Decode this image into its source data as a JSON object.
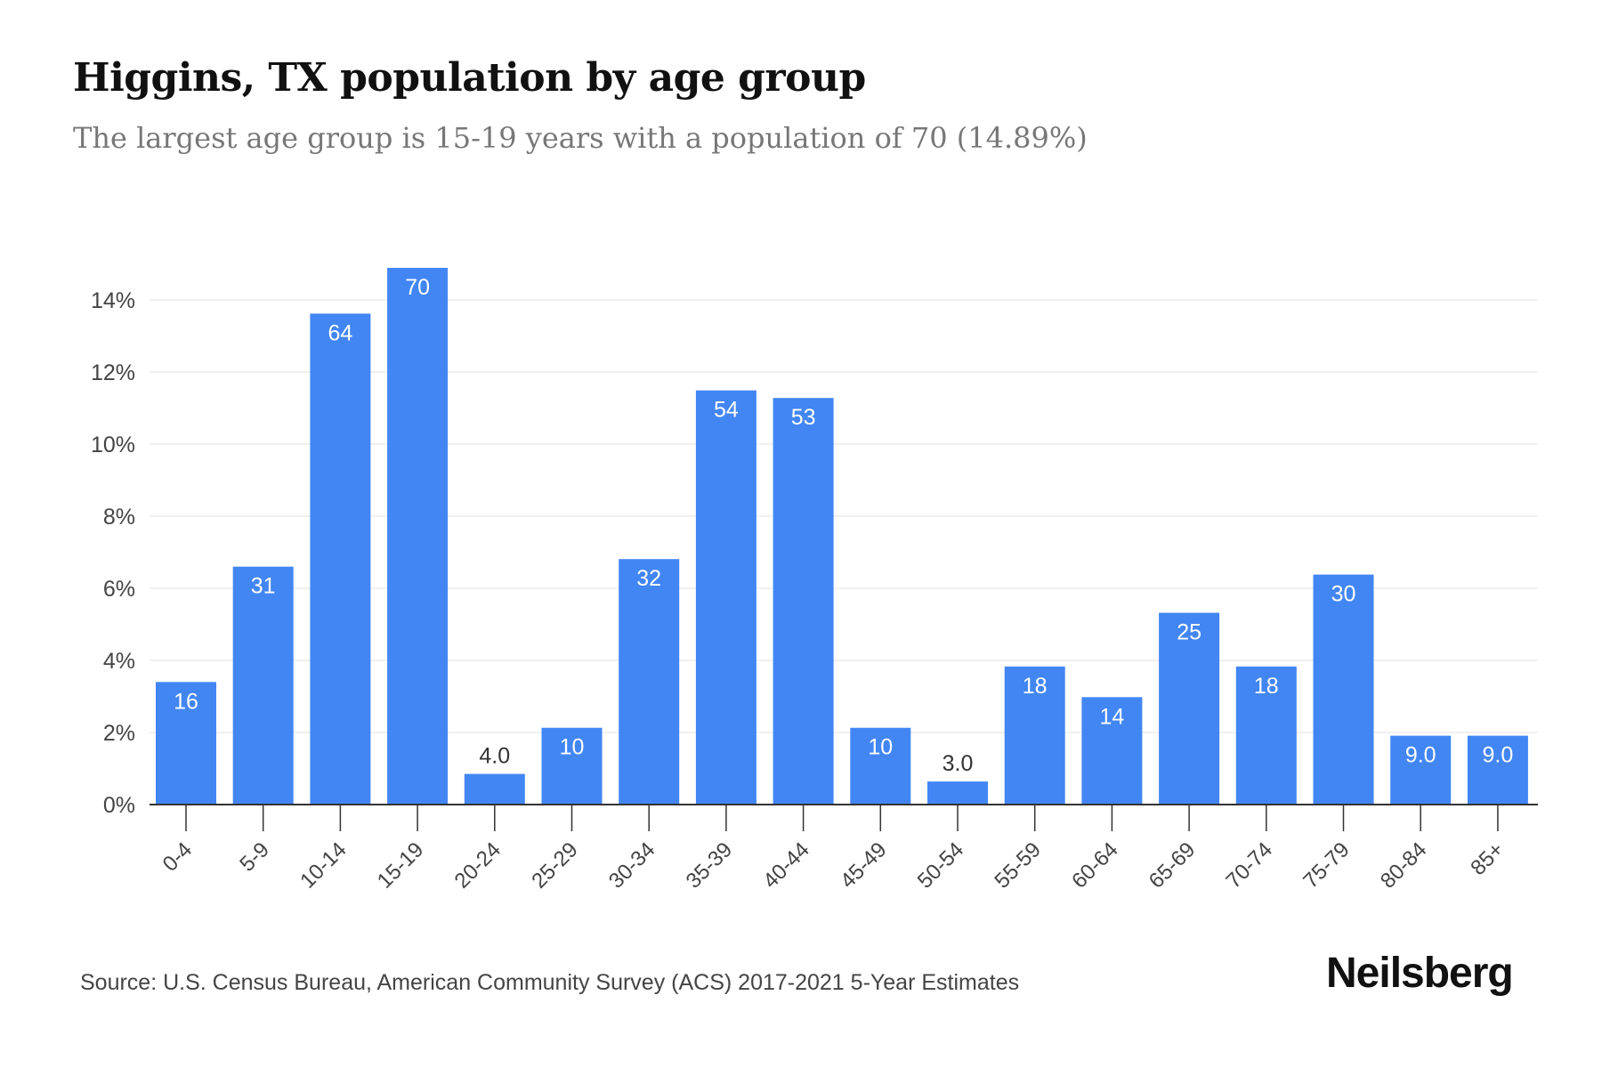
{
  "header": {
    "title": "Higgins, TX population by age group",
    "subtitle": "The largest age group is 15-19 years with a population of 70 (14.89%)"
  },
  "footer": {
    "source": "Source: U.S. Census Bureau, American Community Survey (ACS) 2017-2021 5-Year Estimates",
    "brand": "Neilsberg"
  },
  "colors": {
    "bar": "#4286f4",
    "bar_label_inside": "#ffffff",
    "bar_label_outside": "#333333",
    "grid": "#ececec",
    "axis": "#333333",
    "tick_label": "#444444"
  },
  "chart_data": {
    "type": "bar",
    "title": "Higgins, TX population by age group",
    "subtitle": "The largest age group is 15-19 years with a population of 70 (14.89%)",
    "xlabel": "",
    "ylabel": "",
    "categories": [
      "0-4",
      "5-9",
      "10-14",
      "15-19",
      "20-24",
      "25-29",
      "30-34",
      "35-39",
      "40-44",
      "45-49",
      "50-54",
      "55-59",
      "60-64",
      "65-69",
      "70-74",
      "75-79",
      "80-84",
      "85+"
    ],
    "values_percent": [
      3.4,
      6.6,
      13.62,
      14.89,
      0.85,
      2.13,
      6.81,
      11.49,
      11.28,
      2.13,
      0.64,
      3.83,
      2.98,
      5.32,
      3.83,
      6.38,
      1.91,
      1.91
    ],
    "data_labels": [
      "16",
      "31",
      "64",
      "70",
      "4.0",
      "10",
      "32",
      "54",
      "53",
      "10",
      "3.0",
      "18",
      "14",
      "25",
      "18",
      "30",
      "9.0",
      "9.0"
    ],
    "y_ticks": [
      "0%",
      "2%",
      "4%",
      "6%",
      "8%",
      "10%",
      "12%",
      "14%"
    ],
    "y_tick_values": [
      0,
      2,
      4,
      6,
      8,
      10,
      12,
      14
    ],
    "ylim": [
      0,
      16
    ],
    "grid": true,
    "legend": "none"
  }
}
